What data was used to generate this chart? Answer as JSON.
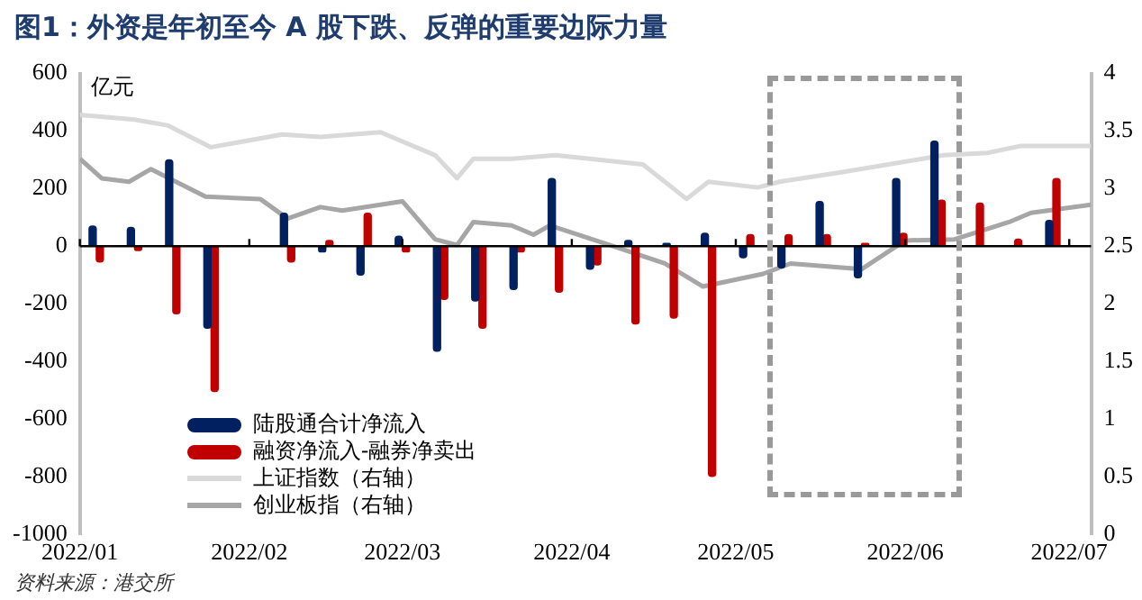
{
  "chart_data": {
    "type": "bar",
    "title": "图1：外资是年初至今 A 股下跌、反弹的重要边际力量",
    "ylabel": "亿元",
    "annotations": [
      "资料来源：港交所"
    ],
    "x": [
      "2022-01-04",
      "2022-01-11",
      "2022-01-18",
      "2022-01-25",
      "2022-02-08",
      "2022-02-15",
      "2022-02-22",
      "2022-03-01",
      "2022-03-08",
      "2022-03-15",
      "2022-03-22",
      "2022-03-29",
      "2022-04-05",
      "2022-04-12",
      "2022-04-19",
      "2022-04-26",
      "2022-05-03",
      "2022-05-10",
      "2022-05-17",
      "2022-05-24",
      "2022-05-31",
      "2022-06-07",
      "2022-06-14",
      "2022-06-21",
      "2022-06-28"
    ],
    "xlim": [
      "2022-01-01",
      "2022-07-05"
    ],
    "xticks": [
      {
        "value": "2022-01-01",
        "label": "2022/01"
      },
      {
        "value": "2022-02-01",
        "label": "2022/02"
      },
      {
        "value": "2022-03-01",
        "label": "2022/03"
      },
      {
        "value": "2022-04-01",
        "label": "2022/04"
      },
      {
        "value": "2022-05-01",
        "label": "2022/05"
      },
      {
        "value": "2022-06-01",
        "label": "2022/06"
      },
      {
        "value": "2022-07-01",
        "label": "2022/07"
      }
    ],
    "ylim": [
      -1000,
      600
    ],
    "yticks": [
      -1000,
      -800,
      -600,
      -400,
      -200,
      0,
      200,
      400,
      600
    ],
    "y2lim": [
      0,
      4
    ],
    "y2ticks": [
      0,
      0.5,
      1,
      1.5,
      2,
      2.5,
      3,
      3.5,
      4
    ],
    "legend": "bottom left",
    "series": [
      {
        "name": "陆股通合计净流入",
        "color": "#002060",
        "values": [
          70,
          65,
          300,
          -285,
          115,
          -20,
          -100,
          35,
          -365,
          -190,
          -150,
          235,
          -80,
          20,
          10,
          45,
          -40,
          -75,
          155,
          -110,
          235,
          365,
          null,
          null,
          90
        ]
      },
      {
        "name": "融资净流入-融券净卖出",
        "color": "#c00000",
        "values": [
          -55,
          -15,
          -235,
          -505,
          -55,
          20,
          115,
          -20,
          -185,
          -285,
          -20,
          -160,
          -65,
          -270,
          -250,
          -800,
          40,
          40,
          40,
          10,
          45,
          160,
          150,
          25,
          235
        ]
      },
      {
        "type": "line",
        "axis": "y2",
        "name": "上证指数（右轴）",
        "color": "#d9d9d9",
        "x": [
          "2022-01-01",
          "2022-01-11",
          "2022-01-17",
          "2022-01-25",
          "2022-02-07",
          "2022-02-14",
          "2022-02-25",
          "2022-03-07",
          "2022-03-11",
          "2022-03-14",
          "2022-03-21",
          "2022-03-29",
          "2022-04-14",
          "2022-04-22",
          "2022-04-26",
          "2022-05-05",
          "2022-05-09",
          "2022-05-20",
          "2022-06-08",
          "2022-06-16",
          "2022-06-22",
          "2022-07-05"
        ],
        "values": [
          3.64,
          3.6,
          3.55,
          3.36,
          3.47,
          3.45,
          3.49,
          3.29,
          3.09,
          3.26,
          3.26,
          3.29,
          3.21,
          2.91,
          3.06,
          3.01,
          3.06,
          3.14,
          3.29,
          3.31,
          3.37,
          3.37
        ]
      },
      {
        "type": "line",
        "axis": "y2",
        "name": "创业板指（右轴）",
        "color": "#a6a6a6",
        "x": [
          "2022-01-01",
          "2022-01-05",
          "2022-01-10",
          "2022-01-14",
          "2022-01-24",
          "2022-02-03",
          "2022-02-08",
          "2022-02-14",
          "2022-02-18",
          "2022-03-01",
          "2022-03-07",
          "2022-03-11",
          "2022-03-14",
          "2022-03-21",
          "2022-03-25",
          "2022-03-28",
          "2022-04-08",
          "2022-04-18",
          "2022-04-25",
          "2022-05-06",
          "2022-05-11",
          "2022-05-24",
          "2022-06-01",
          "2022-06-10",
          "2022-06-20",
          "2022-06-24",
          "2022-07-05"
        ],
        "values": [
          3.26,
          3.09,
          3.06,
          3.17,
          2.93,
          2.91,
          2.74,
          2.84,
          2.81,
          2.89,
          2.56,
          2.51,
          2.71,
          2.68,
          2.6,
          2.68,
          2.51,
          2.35,
          2.15,
          2.26,
          2.35,
          2.3,
          2.55,
          2.56,
          2.71,
          2.79,
          2.86
        ]
      }
    ]
  }
}
